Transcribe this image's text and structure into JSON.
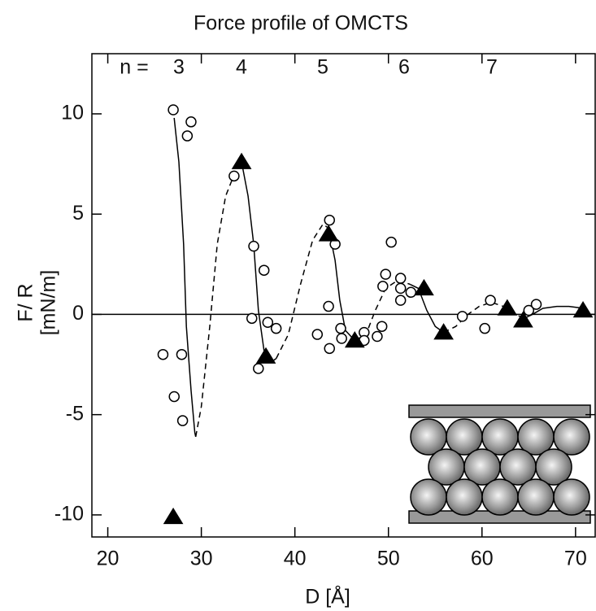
{
  "chart_data": {
    "type": "scatter",
    "title": "Force profile of OMCTS",
    "x_label": "D [Å]",
    "y_label": [
      "F/ R",
      "[mN/m]"
    ],
    "xlim": [
      18.3,
      72.1
    ],
    "xticks": [
      20,
      30,
      40,
      50,
      60,
      70
    ],
    "ylim": [
      -11.1,
      13
    ],
    "yticks": [
      10,
      5,
      0,
      -5,
      -10
    ],
    "zero_line": true,
    "layer_labels": {
      "prefix": "n =",
      "labels": [
        "3",
        "4",
        "5",
        "6",
        "7"
      ]
    },
    "series": [
      {
        "marker": "circle",
        "color": "#000000",
        "x": [
          27.0,
          28.9,
          28.5,
          25.9,
          27.9,
          27.1,
          28.0,
          33.5,
          35.6,
          36.7,
          35.4,
          37.1,
          38.0,
          36.1,
          43.7,
          44.3,
          43.6,
          42.4,
          43.7,
          44.9,
          45.0,
          47.4,
          47.4,
          48.8,
          49.3,
          50.3,
          49.7,
          49.4,
          51.3,
          51.3,
          51.3,
          52.4,
          57.9,
          60.3,
          60.9,
          65.0,
          65.8
        ],
        "values": [
          10.2,
          9.6,
          8.9,
          -2.0,
          -2.0,
          -4.1,
          -5.3,
          6.9,
          3.4,
          2.2,
          -0.2,
          -0.4,
          -0.7,
          -2.7,
          4.7,
          3.5,
          0.4,
          -1.0,
          -1.7,
          -0.7,
          -1.2,
          -0.9,
          -1.3,
          -1.1,
          -0.6,
          3.6,
          2.0,
          1.4,
          1.8,
          1.3,
          0.7,
          1.1,
          -0.1,
          -0.7,
          0.7,
          0.2,
          0.5
        ]
      },
      {
        "marker": "triangle",
        "color": "#000000",
        "x": [
          27.0,
          34.3,
          36.9,
          43.6,
          46.4,
          53.8,
          55.9,
          62.7,
          64.4,
          70.8
        ],
        "values": [
          -10.1,
          7.6,
          -2.1,
          4.0,
          -1.3,
          1.3,
          -0.9,
          0.3,
          -0.3,
          0.2
        ]
      }
    ],
    "curves": [
      {
        "style": "solid",
        "x": [
          27.1,
          27.6,
          28.1,
          28.4,
          28.9,
          29.3,
          29.4
        ],
        "y": [
          9.8,
          7.6,
          3.5,
          -0.6,
          -3.8,
          -5.9,
          -6.1
        ]
      },
      {
        "style": "dashed",
        "x": [
          29.4,
          30.0,
          30.9,
          31.7,
          32.6,
          33.7,
          34.3
        ],
        "y": [
          -6.1,
          -4.6,
          -0.6,
          3.5,
          5.9,
          7.2,
          7.6
        ]
      },
      {
        "style": "solid",
        "x": [
          34.3,
          35.0,
          35.6,
          36.1,
          36.7,
          37.4,
          38.0
        ],
        "y": [
          7.6,
          5.9,
          3.5,
          0.2,
          -1.8,
          -2.4,
          -2.2
        ]
      },
      {
        "style": "dashed",
        "x": [
          38.0,
          39.3,
          40.6,
          41.9,
          43.0,
          43.6
        ],
        "y": [
          -2.2,
          -1.0,
          1.5,
          3.7,
          4.5,
          4.3
        ]
      },
      {
        "style": "solid",
        "x": [
          43.6,
          44.3,
          44.8,
          45.4,
          46.4
        ],
        "y": [
          4.3,
          2.7,
          0.7,
          -0.8,
          -1.3
        ]
      },
      {
        "style": "dashed",
        "x": [
          46.4,
          47.6,
          48.6,
          49.7,
          51.0,
          52.3
        ],
        "y": [
          -1.3,
          -1.0,
          0.2,
          1.3,
          1.7,
          1.5
        ]
      },
      {
        "style": "solid",
        "x": [
          52.3,
          53.2,
          54.1,
          55.0,
          55.9
        ],
        "y": [
          1.5,
          1.3,
          0.2,
          -0.6,
          -0.9
        ]
      },
      {
        "style": "dashed",
        "x": [
          55.9,
          57.2,
          58.5,
          59.7,
          61.0,
          62.3,
          63.6,
          64.5
        ],
        "y": [
          -0.9,
          -0.6,
          0.0,
          0.4,
          0.6,
          0.4,
          0.0,
          -0.2
        ]
      },
      {
        "style": "solid",
        "x": [
          64.5,
          65.4,
          66.5,
          68.0,
          69.3,
          70.9
        ],
        "y": [
          -0.2,
          0.0,
          0.3,
          0.4,
          0.4,
          0.3
        ]
      }
    ]
  }
}
